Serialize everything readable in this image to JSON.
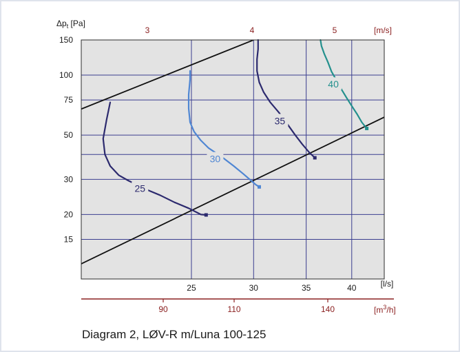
{
  "caption": "Diagram 2, LØV-R m/Luna 100-125",
  "chart_data": {
    "type": "line",
    "title": "",
    "x_axis": {
      "label": "[l/s]",
      "scale": "log",
      "range": [
        18.1,
        44.0
      ],
      "ticks": [
        25,
        30,
        35,
        40
      ]
    },
    "x2_axis": {
      "label": "[m³/h]",
      "label_main": "[m",
      "label_sup": "3",
      "label_tail": "/h]",
      "ticks": [
        90,
        110,
        140
      ]
    },
    "top_axis": {
      "label": "[m/s]",
      "ticks": [
        3,
        4,
        5
      ]
    },
    "y_axis": {
      "label_main": "Δp",
      "label_sub": "t",
      "label_tail": " [Pa]",
      "scale": "log",
      "range": [
        9.5,
        150
      ],
      "ticks": [
        15,
        20,
        30,
        50,
        75,
        100,
        150
      ]
    },
    "grid": true,
    "colors": {
      "background": "#e3e3e3",
      "grid": "#3a3d8f",
      "frame": "#2b2b2b",
      "secondary_axis": "#8b2020",
      "boundary": "#111111"
    },
    "boundary_lines": [
      {
        "points": [
          [
            18.0,
            67.0
          ],
          [
            30.0,
            150.0
          ]
        ]
      },
      {
        "points": [
          [
            18.0,
            11.2
          ],
          [
            44.0,
            61.5
          ]
        ]
      }
    ],
    "series": [
      {
        "name": "25",
        "color": "#2c2a6e",
        "points": [
          [
            19.7,
            73
          ],
          [
            19.5,
            60
          ],
          [
            19.3,
            48
          ],
          [
            19.4,
            40
          ],
          [
            19.7,
            35
          ],
          [
            20.2,
            31.5
          ],
          [
            20.8,
            29.5
          ],
          [
            21.4,
            28
          ],
          [
            22.0,
            26.5
          ],
          [
            22.8,
            25.0
          ],
          [
            23.8,
            23.0
          ],
          [
            24.8,
            21.5
          ],
          [
            25.7,
            20.0
          ],
          [
            26.1,
            19.9
          ]
        ],
        "label_value": "25",
        "label_at": [
          21.5,
          27
        ]
      },
      {
        "name": "30",
        "color": "#4f86d3",
        "points": [
          [
            24.9,
            105
          ],
          [
            24.9,
            95
          ],
          [
            24.8,
            80
          ],
          [
            24.8,
            68
          ],
          [
            24.9,
            58
          ],
          [
            25.2,
            52
          ],
          [
            25.7,
            47
          ],
          [
            26.3,
            43
          ],
          [
            27.3,
            39
          ],
          [
            28.3,
            35
          ],
          [
            29.1,
            32
          ],
          [
            29.8,
            29.5
          ],
          [
            30.2,
            28.2
          ],
          [
            30.5,
            27.5
          ]
        ],
        "label_value": "30",
        "label_at": [
          26.8,
          38
        ]
      },
      {
        "name": "35",
        "color": "#2c2a6e",
        "points": [
          [
            30.4,
            150
          ],
          [
            30.4,
            135
          ],
          [
            30.3,
            120
          ],
          [
            30.3,
            105
          ],
          [
            30.5,
            92
          ],
          [
            30.9,
            82
          ],
          [
            31.5,
            73
          ],
          [
            32.3,
            65
          ],
          [
            33.1,
            57
          ],
          [
            33.9,
            50
          ],
          [
            34.6,
            45
          ],
          [
            35.3,
            41
          ],
          [
            35.9,
            38.5
          ]
        ],
        "label_value": "35",
        "label_at": [
          32.4,
          59
        ]
      },
      {
        "name": "40",
        "color": "#23908d",
        "points": [
          [
            36.5,
            150
          ],
          [
            36.6,
            140
          ],
          [
            36.9,
            128
          ],
          [
            37.3,
            116
          ],
          [
            37.7,
            104
          ],
          [
            38.2,
            95
          ],
          [
            38.8,
            85
          ],
          [
            39.4,
            77
          ],
          [
            40.0,
            70
          ],
          [
            40.6,
            64
          ],
          [
            41.2,
            58
          ],
          [
            41.8,
            54
          ]
        ],
        "label_value": "40",
        "label_at": [
          37.9,
          90
        ]
      }
    ]
  }
}
